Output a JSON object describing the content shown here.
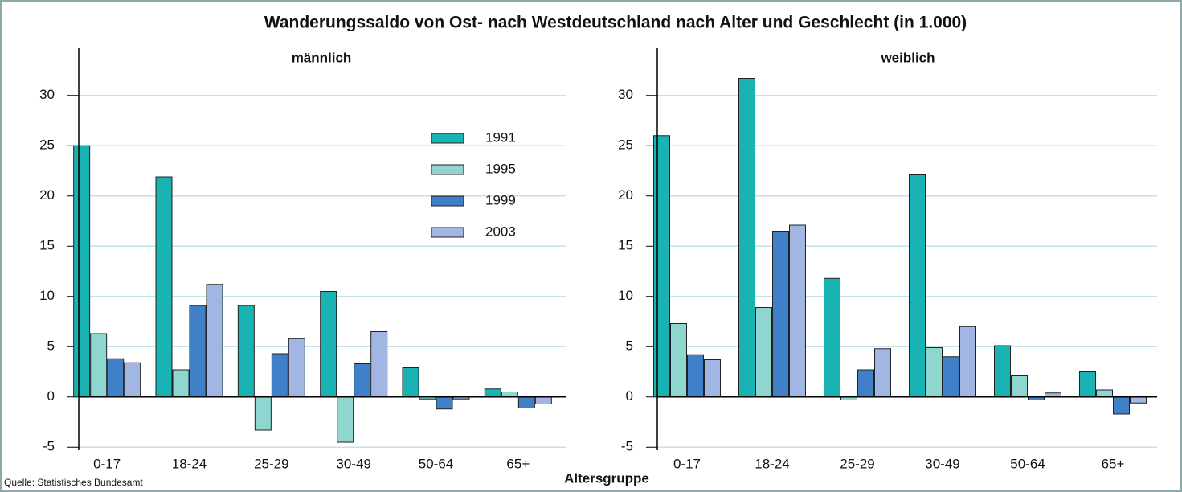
{
  "title": "Wanderungssaldo von Ost- nach Westdeutschland nach Alter und Geschlecht (in 1.000)",
  "source": "Quelle: Statistisches Bundesamt",
  "xlabel": "Altersgruppe",
  "chart_data": [
    {
      "type": "bar",
      "subtitle": "männlich",
      "categories": [
        "0-17",
        "18-24",
        "25-29",
        "30-49",
        "50-64",
        "65+"
      ],
      "series": [
        {
          "name": "1991",
          "color": "#19b3b3",
          "values": [
            25,
            21.9,
            9.1,
            10.5,
            2.9,
            0.8
          ]
        },
        {
          "name": "1995",
          "color": "#8fd6d0",
          "values": [
            6.3,
            2.7,
            -3.3,
            -4.5,
            -0.2,
            0.5
          ]
        },
        {
          "name": "1999",
          "color": "#3f80c8",
          "values": [
            3.8,
            9.1,
            4.3,
            3.3,
            -1.2,
            -1.1
          ]
        },
        {
          "name": "2003",
          "color": "#a1b6e2",
          "values": [
            3.4,
            11.2,
            5.8,
            6.5,
            -0.2,
            -0.7
          ]
        }
      ],
      "ylim": [
        -5.3,
        34.7
      ],
      "yticks": [
        -5,
        0,
        5,
        10,
        15,
        20,
        25,
        30
      ],
      "grid": true,
      "legend": true
    },
    {
      "type": "bar",
      "subtitle": "weiblich",
      "categories": [
        "0-17",
        "18-24",
        "25-29",
        "30-49",
        "50-64",
        "65+"
      ],
      "series": [
        {
          "name": "1991",
          "color": "#19b3b3",
          "values": [
            26,
            31.7,
            11.8,
            22.1,
            5.1,
            2.5
          ]
        },
        {
          "name": "1995",
          "color": "#8fd6d0",
          "values": [
            7.3,
            8.9,
            -0.3,
            4.9,
            2.1,
            0.7
          ]
        },
        {
          "name": "1999",
          "color": "#3f80c8",
          "values": [
            4.2,
            16.5,
            2.7,
            4.0,
            -0.3,
            -1.7
          ]
        },
        {
          "name": "2003",
          "color": "#a1b6e2",
          "values": [
            3.7,
            17.1,
            4.8,
            7.0,
            0.4,
            -0.6
          ]
        }
      ],
      "ylim": [
        -5.3,
        34.7
      ],
      "yticks": [
        -5,
        0,
        5,
        10,
        15,
        20,
        25,
        30
      ],
      "grid": true,
      "legend": false
    }
  ]
}
